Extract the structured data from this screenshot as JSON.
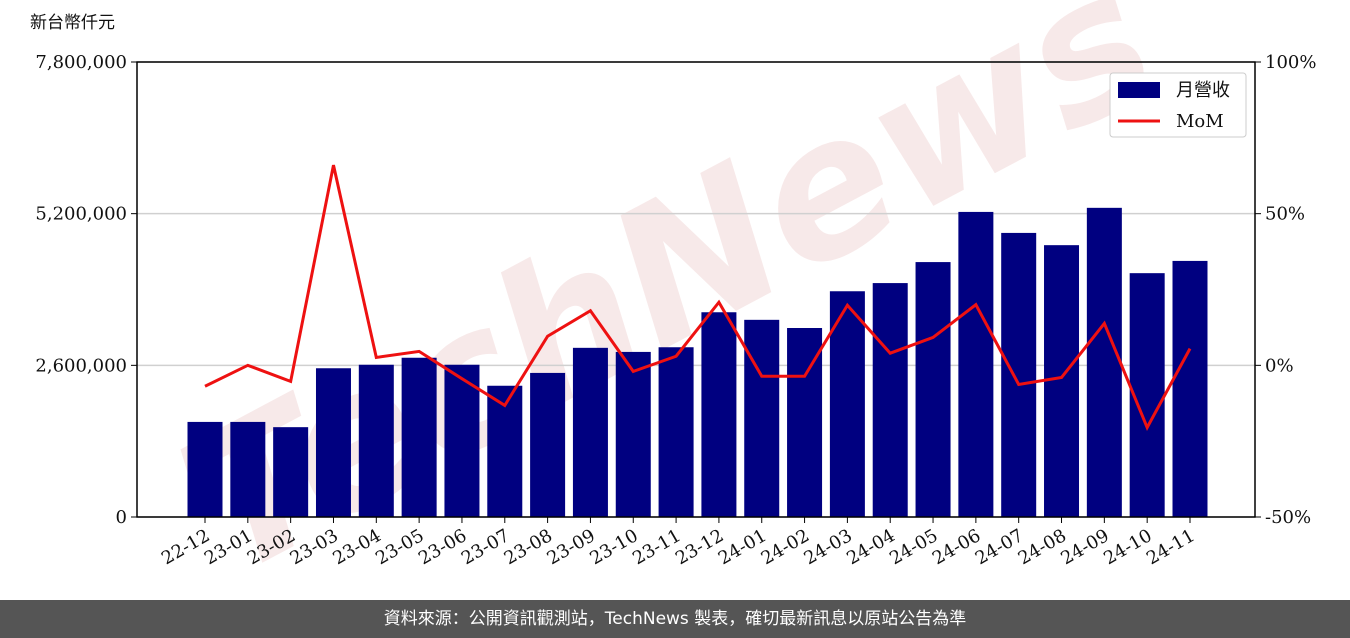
{
  "chart_data": {
    "type": "bar",
    "unit_label": "新台幣仟元",
    "watermark": "TechNews",
    "footer": "資料來源：公開資訊觀測站，TechNews 製表，確切最新訊息以原站公告為準",
    "legend": "upper right",
    "grid": true,
    "categories": [
      "22-12",
      "23-01",
      "23-02",
      "23-03",
      "23-04",
      "23-05",
      "23-06",
      "23-07",
      "23-08",
      "23-09",
      "23-10",
      "23-11",
      "23-12",
      "24-01",
      "24-02",
      "24-03",
      "24-04",
      "24-05",
      "24-06",
      "24-07",
      "24-08",
      "24-09",
      "24-10",
      "24-11"
    ],
    "series": [
      {
        "name": "月營收",
        "type": "bar",
        "color": "#000080",
        "values": [
          1630000,
          1630000,
          1540000,
          2550000,
          2610000,
          2730000,
          2610000,
          2250000,
          2470000,
          2900000,
          2830000,
          2910000,
          3510000,
          3380000,
          3240000,
          3870000,
          4010000,
          4370000,
          5230000,
          4870000,
          4660000,
          5300000,
          4180000,
          4390000
        ]
      },
      {
        "name": "MoM",
        "type": "line",
        "axis": "y2",
        "color": "#ee1111",
        "values": [
          -6.9,
          0,
          -5.3,
          66,
          2.6,
          4.6,
          -4.4,
          -13.2,
          9.6,
          18,
          -2,
          3,
          20.8,
          -3.6,
          -3.6,
          19.8,
          4,
          9.2,
          20,
          -6.3,
          -4,
          13.8,
          -20.5,
          5.5
        ]
      }
    ],
    "ylim": [
      0,
      7800000
    ],
    "yticks": [
      0,
      {
        "value": 2600000,
        "label": "2,600,000"
      },
      {
        "value": 5200000,
        "label": "5,200,000"
      },
      {
        "value": 7800000,
        "label": "7,800,000"
      }
    ],
    "y2lim": [
      -50,
      100
    ],
    "y2ticks": [
      {
        "value": -50,
        "label": "-50%"
      },
      {
        "value": 0,
        "label": "0%"
      },
      {
        "value": 50,
        "label": "50%"
      },
      {
        "value": 100,
        "label": "100%"
      }
    ]
  }
}
